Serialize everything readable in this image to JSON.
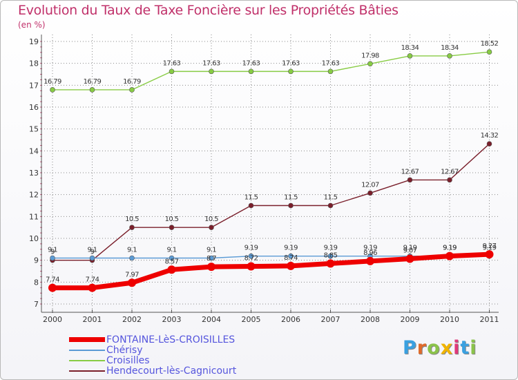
{
  "title": "Evolution du Taux de Taxe Foncière sur les Propriétés Bâties",
  "subtitle": "(en %)",
  "logo_text": "Proxiti",
  "colors": {
    "title": "#c0306a",
    "axis_text": "#333333",
    "grid": "#888888",
    "legend_text": "#5555dd"
  },
  "chart_data": {
    "type": "line",
    "title": "Evolution du Taux de Taxe Foncière sur les Propriétés Bâties",
    "ylabel": "(en %)",
    "xlabel": "",
    "ylim": [
      7,
      19
    ],
    "yticks": [
      "7",
      "8",
      "9",
      "10",
      "11",
      "12",
      "13",
      "14",
      "15",
      "16",
      "17",
      "18",
      "19"
    ],
    "x": [
      "2000",
      "2001",
      "2002",
      "2003",
      "2004",
      "2005",
      "2006",
      "2007",
      "2008",
      "2009",
      "2010",
      "2011"
    ],
    "legend_position": "bottom-left",
    "series": [
      {
        "name": "FONTAINE-LèS-CROISILLES",
        "color": "#ee0000",
        "values": [
          7.74,
          7.74,
          7.97,
          8.57,
          8.7,
          8.72,
          8.74,
          8.85,
          8.96,
          9.07,
          9.19,
          9.27
        ],
        "labels": [
          "7.74",
          "7.74",
          "7.97",
          "8.57",
          "8.7",
          "8.72",
          "8.74",
          "8.85",
          "8.96",
          "9.07",
          "9.19",
          "9.27"
        ]
      },
      {
        "name": "Chérisy",
        "color": "#5b9bd5",
        "values": [
          9.1,
          9.1,
          9.1,
          9.1,
          9.1,
          9.19,
          9.19,
          9.19,
          9.19,
          9.19,
          9.19,
          9.19
        ],
        "labels": [
          "9.1",
          "9.1",
          "9.1",
          "9.1",
          "9.1",
          "9.19",
          "9.19",
          "9.19",
          "9.19",
          "9.19",
          "9.19",
          "9.19"
        ]
      },
      {
        "name": "Croisilles",
        "color": "#88cc44",
        "values": [
          16.79,
          16.79,
          16.79,
          17.63,
          17.63,
          17.63,
          17.63,
          17.63,
          17.98,
          18.34,
          18.34,
          18.52
        ],
        "labels": [
          "16.79",
          "16.79",
          "16.79",
          "17.63",
          "17.63",
          "17.63",
          "17.63",
          "17.63",
          "17.98",
          "18.34",
          "18.34",
          "18.52"
        ]
      },
      {
        "name": "Hendecourt-lès-Cagnicourt",
        "color": "#7a1f2b",
        "values": [
          9.0,
          9.0,
          10.5,
          10.5,
          10.5,
          11.5,
          11.5,
          11.5,
          12.07,
          12.67,
          12.67,
          14.32
        ],
        "labels": [
          "9",
          "9",
          "10.5",
          "10.5",
          "10.5",
          "11.5",
          "11.5",
          "11.5",
          "12.07",
          "12.67",
          "12.67",
          "14.32"
        ]
      }
    ]
  }
}
